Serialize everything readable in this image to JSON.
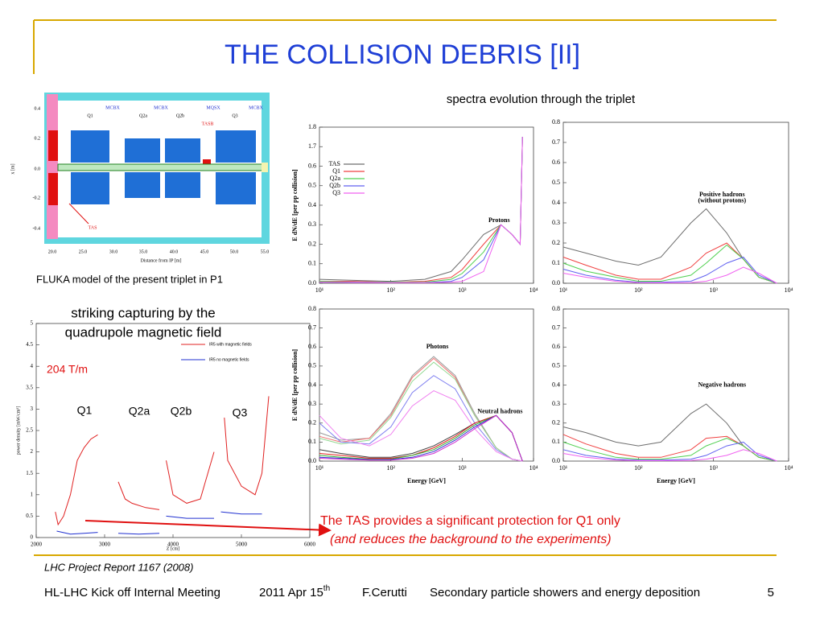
{
  "slide": {
    "title": "THE COLLISION DEBRIS [II]",
    "spectra_heading": "spectra evolution through the triplet",
    "fluka_caption": "FLUKA model of the present triplet in P1",
    "striking_line1": "striking capturing by the",
    "striking_line2": "quadrupole magnetic field",
    "gradient": "204 T/m",
    "quad_labels": [
      "Q1",
      "Q2a",
      "Q2b",
      "Q3"
    ],
    "tas_note": "The TAS provides a significant protection for Q1 only",
    "tas_note_italic": "(and reduces the background to the experiments)",
    "reference": "LHC Project Report 1167 (2008)",
    "footer": {
      "meeting": "HL-LHC Kick off Internal Meeting",
      "date": "2011 Apr 15",
      "date_sup": "th",
      "author": "F.Cerutti",
      "topic": "Secondary particle showers and energy deposition",
      "page": "5"
    }
  },
  "fluka": {
    "y_ticks": [
      "0.4",
      "0.2",
      "0.0",
      "-0.2",
      "-0.4"
    ],
    "x_ticks": [
      "20.0",
      "25.0",
      "30.0",
      "35.0",
      "40.0",
      "45.0",
      "50.0",
      "55.0"
    ],
    "y_label": "x [m]",
    "x_label": "Distance from IP [m]",
    "correctors": [
      "MCBX",
      "MCBX",
      "MQSX",
      "MCBX"
    ],
    "quads": [
      "Q1",
      "Q2a",
      "Q2b",
      "Q3"
    ],
    "tasb": "TASB",
    "tas": "TAS"
  },
  "chart_data": [
    {
      "type": "line",
      "xscale": "log",
      "xlim": [
        10,
        10000
      ],
      "ylim": [
        0,
        1.8
      ],
      "ybreak": [
        0.65,
        1.65
      ],
      "xticks": [
        {
          "value": 10,
          "label": "10¹"
        },
        {
          "value": 100,
          "label": "10²"
        },
        {
          "value": 1000,
          "label": "10³"
        },
        {
          "value": 10000,
          "label": "10⁴"
        }
      ],
      "yticks": [
        {
          "value": 0,
          "label": "0.0"
        },
        0.1,
        0.2,
        0.3,
        0.4,
        0.5,
        0.6,
        1.7,
        1.8
      ],
      "ylabel": "E dN/dE [per pp collision]",
      "legend": "upper-left",
      "annotations": [
        "Protons"
      ],
      "x": [
        10,
        30,
        100,
        300,
        700,
        1000,
        2000,
        3500,
        5000,
        6500,
        7000
      ],
      "series": [
        {
          "name": "TAS",
          "color": "#6e6e6e",
          "values": [
            0.02,
            0.015,
            0.01,
            0.02,
            0.06,
            0.12,
            0.25,
            0.3,
            0.25,
            0.2,
            1.75
          ]
        },
        {
          "name": "Q1",
          "color": "#f04040",
          "values": [
            0.01,
            0.01,
            0.005,
            0.01,
            0.03,
            0.07,
            0.2,
            0.3,
            0.25,
            0.2,
            1.75
          ]
        },
        {
          "name": "Q2a",
          "color": "#50d050",
          "values": [
            0.01,
            0.005,
            0.005,
            0.005,
            0.02,
            0.05,
            0.16,
            0.3,
            0.25,
            0.2,
            1.75
          ]
        },
        {
          "name": "Q2b",
          "color": "#6060f0",
          "values": [
            0.005,
            0.005,
            0.003,
            0.003,
            0.01,
            0.03,
            0.12,
            0.3,
            0.25,
            0.2,
            1.75
          ]
        },
        {
          "name": "Q3",
          "color": "#f060f0",
          "values": [
            0.005,
            0.003,
            0.002,
            0.002,
            0.005,
            0.01,
            0.06,
            0.3,
            0.25,
            0.2,
            1.75
          ]
        }
      ]
    },
    {
      "type": "line",
      "xscale": "log",
      "xlim": [
        10,
        10000
      ],
      "ylim": [
        0,
        0.8
      ],
      "xticks": [
        {
          "value": 10,
          "label": "10¹"
        },
        {
          "value": 100,
          "label": "10²"
        },
        {
          "value": 1000,
          "label": "10³"
        },
        {
          "value": 10000,
          "label": "10⁴"
        }
      ],
      "yticks": [
        {
          "value": 0,
          "label": "0.0"
        },
        0.1,
        0.2,
        0.3,
        0.4,
        0.5,
        0.6,
        0.7,
        0.8
      ],
      "annotations": [
        "Positive hadrons",
        "(without protons)"
      ],
      "x": [
        10,
        20,
        50,
        100,
        200,
        500,
        800,
        1500,
        2500,
        4000,
        7000
      ],
      "series": [
        {
          "color": "#6e6e6e",
          "values": [
            0.18,
            0.15,
            0.11,
            0.09,
            0.13,
            0.3,
            0.37,
            0.25,
            0.12,
            0.03,
            0
          ]
        },
        {
          "color": "#f04040",
          "values": [
            0.13,
            0.09,
            0.04,
            0.02,
            0.02,
            0.08,
            0.15,
            0.2,
            0.12,
            0.03,
            0
          ]
        },
        {
          "color": "#50d050",
          "values": [
            0.1,
            0.06,
            0.03,
            0.01,
            0.01,
            0.04,
            0.1,
            0.19,
            0.12,
            0.03,
            0
          ]
        },
        {
          "color": "#6060f0",
          "values": [
            0.07,
            0.04,
            0.015,
            0.005,
            0.005,
            0.01,
            0.04,
            0.1,
            0.13,
            0.04,
            0
          ]
        },
        {
          "color": "#f060f0",
          "values": [
            0.05,
            0.03,
            0.01,
            0.003,
            0.002,
            0.003,
            0.01,
            0.04,
            0.08,
            0.05,
            0
          ]
        }
      ]
    },
    {
      "type": "line",
      "xscale": "log",
      "xlim": [
        10,
        10000
      ],
      "ylim": [
        0,
        0.8
      ],
      "xticks": [
        {
          "value": 10,
          "label": "10¹"
        },
        {
          "value": 100,
          "label": "10²"
        },
        {
          "value": 1000,
          "label": "10³"
        },
        {
          "value": 10000,
          "label": "10⁴"
        }
      ],
      "yticks": [
        {
          "value": 0,
          "label": "0.0"
        },
        0.1,
        0.2,
        0.3,
        0.4,
        0.5,
        0.6,
        0.7,
        0.8
      ],
      "ylabel": "E dN/dE [per pp collision]",
      "xlabel": "Energy [GeV]",
      "annotations": [
        "Photons",
        "Neutral hadrons"
      ],
      "x": [
        10,
        20,
        50,
        100,
        200,
        400,
        800,
        1500,
        3000,
        5000,
        7000
      ],
      "series": [
        {
          "color": "#9a9a9a",
          "values": [
            0.15,
            0.11,
            0.12,
            0.25,
            0.45,
            0.55,
            0.45,
            0.25,
            0.07,
            0.01,
            0
          ]
        },
        {
          "color": "#f07070",
          "values": [
            0.13,
            0.1,
            0.12,
            0.24,
            0.44,
            0.54,
            0.44,
            0.24,
            0.07,
            0.01,
            0
          ]
        },
        {
          "color": "#90d890",
          "values": [
            0.12,
            0.09,
            0.11,
            0.23,
            0.42,
            0.52,
            0.43,
            0.24,
            0.07,
            0.01,
            0
          ]
        },
        {
          "color": "#8080f0",
          "values": [
            0.2,
            0.1,
            0.09,
            0.18,
            0.36,
            0.45,
            0.38,
            0.2,
            0.06,
            0.01,
            0
          ]
        },
        {
          "color": "#f080f0",
          "values": [
            0.24,
            0.12,
            0.08,
            0.14,
            0.29,
            0.37,
            0.32,
            0.17,
            0.05,
            0.01,
            0
          ]
        },
        {
          "color": "#404040",
          "values": [
            0.06,
            0.04,
            0.02,
            0.02,
            0.04,
            0.08,
            0.14,
            0.2,
            0.24,
            0.15,
            0
          ]
        },
        {
          "color": "#e02020",
          "values": [
            0.04,
            0.03,
            0.015,
            0.015,
            0.03,
            0.07,
            0.13,
            0.2,
            0.24,
            0.15,
            0
          ]
        },
        {
          "color": "#30b030",
          "values": [
            0.03,
            0.02,
            0.01,
            0.01,
            0.03,
            0.06,
            0.12,
            0.19,
            0.24,
            0.15,
            0
          ]
        },
        {
          "color": "#3030d0",
          "values": [
            0.02,
            0.015,
            0.008,
            0.008,
            0.02,
            0.05,
            0.11,
            0.18,
            0.24,
            0.15,
            0
          ]
        },
        {
          "color": "#d030d0",
          "values": [
            0.015,
            0.01,
            0.005,
            0.005,
            0.015,
            0.04,
            0.1,
            0.17,
            0.24,
            0.15,
            0
          ]
        }
      ]
    },
    {
      "type": "line",
      "xscale": "log",
      "xlim": [
        10,
        10000
      ],
      "ylim": [
        0,
        0.8
      ],
      "xticks": [
        {
          "value": 10,
          "label": "10¹"
        },
        {
          "value": 100,
          "label": "10²"
        },
        {
          "value": 1000,
          "label": "10³"
        },
        {
          "value": 10000,
          "label": "10⁴"
        }
      ],
      "yticks": [
        {
          "value": 0,
          "label": "0.0"
        },
        0.1,
        0.2,
        0.3,
        0.4,
        0.5,
        0.6,
        0.7,
        0.8
      ],
      "xlabel": "Energy [GeV]",
      "annotations": [
        "Negative hadrons"
      ],
      "x": [
        10,
        20,
        50,
        100,
        200,
        500,
        800,
        1500,
        2500,
        4000,
        7000
      ],
      "series": [
        {
          "color": "#6e6e6e",
          "values": [
            0.18,
            0.15,
            0.1,
            0.08,
            0.1,
            0.25,
            0.3,
            0.2,
            0.08,
            0.02,
            0
          ]
        },
        {
          "color": "#f04040",
          "values": [
            0.14,
            0.09,
            0.04,
            0.02,
            0.02,
            0.06,
            0.12,
            0.13,
            0.08,
            0.02,
            0
          ]
        },
        {
          "color": "#50d050",
          "values": [
            0.1,
            0.06,
            0.02,
            0.01,
            0.01,
            0.03,
            0.08,
            0.12,
            0.08,
            0.02,
            0
          ]
        },
        {
          "color": "#6060f0",
          "values": [
            0.06,
            0.03,
            0.01,
            0.005,
            0.005,
            0.01,
            0.03,
            0.08,
            0.1,
            0.03,
            0
          ]
        },
        {
          "color": "#f060f0",
          "values": [
            0.04,
            0.02,
            0.005,
            0.002,
            0.002,
            0.003,
            0.01,
            0.03,
            0.06,
            0.04,
            0
          ]
        }
      ]
    },
    {
      "type": "line",
      "xscale": "linear",
      "xlim": [
        2000,
        6000
      ],
      "ylim": [
        0,
        5
      ],
      "xticks": [
        2000,
        3000,
        4000,
        5000,
        6000
      ],
      "yticks": [
        0,
        0.5,
        1,
        1.5,
        2,
        2.5,
        3,
        3.5,
        4,
        4.5,
        5
      ],
      "ylabel": "power density [mW/cm³]",
      "xlabel": "Z [cm]",
      "legend": "upper-right",
      "series": [
        {
          "name": "IR5 with magnetic fields",
          "color": "#e02020",
          "x": [
            2280,
            2320,
            2400,
            2500,
            2600,
            2700,
            2800,
            2900,
            3050,
            3200,
            3300,
            3400,
            3600,
            3800,
            3850,
            3900,
            4000,
            4200,
            4400,
            4600,
            4680,
            4750,
            4800,
            5000,
            5200,
            5300,
            5400
          ],
          "values": [
            0.6,
            0.3,
            0.5,
            1.0,
            1.8,
            2.1,
            2.3,
            2.4,
            null,
            1.3,
            0.9,
            0.8,
            0.7,
            0.65,
            null,
            1.8,
            1.0,
            0.8,
            0.9,
            2.0,
            null,
            2.8,
            1.8,
            1.2,
            1.0,
            1.5,
            3.3
          ]
        },
        {
          "name": "IR5 no magnetic fields",
          "color": "#2030d0",
          "x": [
            2300,
            2500,
            2700,
            2900,
            3050,
            3200,
            3500,
            3800,
            3850,
            3900,
            4200,
            4600,
            4650,
            4700,
            5000,
            5300
          ],
          "values": [
            0.15,
            0.08,
            0.1,
            0.12,
            null,
            0.1,
            0.08,
            0.1,
            null,
            0.5,
            0.45,
            0.45,
            null,
            0.6,
            0.55,
            0.55
          ]
        }
      ]
    }
  ]
}
